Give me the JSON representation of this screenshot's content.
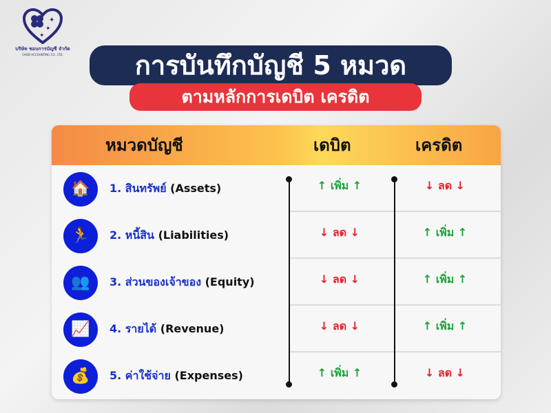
{
  "logo": {
    "company_th": "บริษัท ชอบการบัญชี จำกัด",
    "company_en": "CHOB ACCOUNTING CO., LTD."
  },
  "title": "การบันทึกบัญชี 5 หมวด",
  "subtitle": "ตามหลักการเดบิต เครดิต",
  "headers": {
    "category": "หมวดบัญชี",
    "debit": "เดบิต",
    "credit": "เครดิต"
  },
  "colors": {
    "increase": "#1aa33a",
    "decrease": "#e5202a",
    "icon_bg": "#0d1fd8"
  },
  "rows": [
    {
      "num": "1.",
      "th": "สินทรัพย์",
      "en": "(Assets)",
      "icon": "house-car-money-icon",
      "debit": "เพิ่ม",
      "debit_dir": "up",
      "credit": "ลด",
      "credit_dir": "down"
    },
    {
      "num": "2.",
      "th": "หนี้สิน",
      "en": "(Liabilities)",
      "icon": "person-carrying-debt-icon",
      "debit": "ลด",
      "debit_dir": "down",
      "credit": "เพิ่ม",
      "credit_dir": "up"
    },
    {
      "num": "3.",
      "th": "ส่วนของเจ้าของ",
      "en": "(Equity)",
      "icon": "owners-group-icon",
      "debit": "ลด",
      "debit_dir": "down",
      "credit": "เพิ่ม",
      "credit_dir": "up"
    },
    {
      "num": "4.",
      "th": "รายได้",
      "en": "(Revenue)",
      "icon": "revenue-chart-icon",
      "debit": "ลด",
      "debit_dir": "down",
      "credit": "เพิ่ม",
      "credit_dir": "up"
    },
    {
      "num": "5.",
      "th": "ค่าใช้จ่าย",
      "en": "(Expenses)",
      "icon": "money-bag-out-icon",
      "debit": "เพิ่ม",
      "debit_dir": "up",
      "credit": "ลด",
      "credit_dir": "down"
    }
  ]
}
